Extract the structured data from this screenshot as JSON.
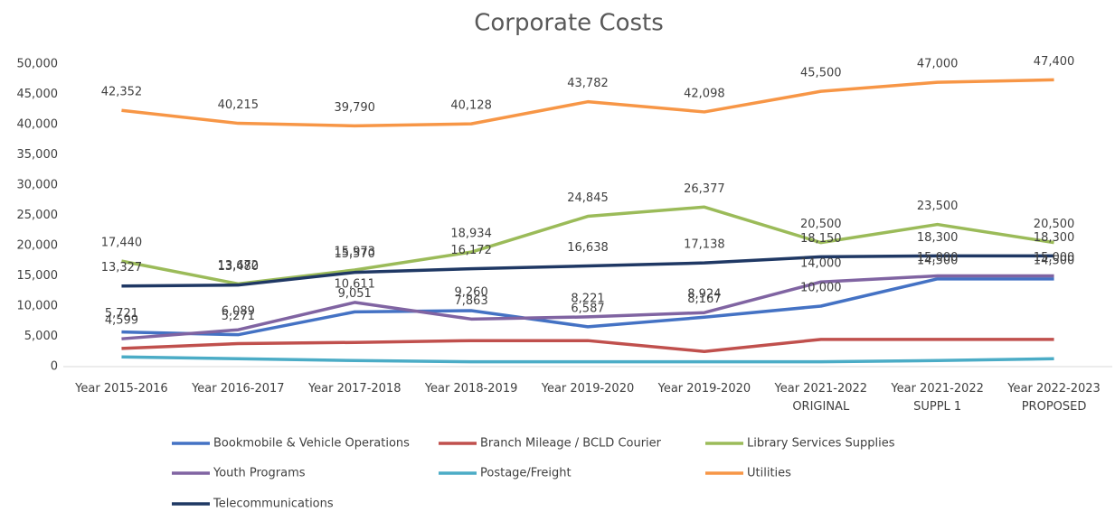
{
  "chart_data": {
    "type": "line",
    "title": "Corporate Costs",
    "categories": [
      "Year 2015-2016",
      "Year 2016-2017",
      "Year 2017-2018",
      "Year 2018-2019",
      "Year 2019-2020",
      "Year 2019-2020",
      "Year 2021-2022\nORIGINAL",
      "Year 2021-2022\nSUPPL 1",
      "Year 2022-2023\nPROPOSED"
    ],
    "series": [
      {
        "name": "Bookmobile & Vehicle Operations",
        "color": "#4472c4",
        "values": [
          5721,
          5271,
          9051,
          9260,
          6587,
          8167,
          10000,
          14500,
          14500
        ],
        "value_labels": [
          "5,721",
          "5,271",
          "9,051",
          "9,260",
          "6,587",
          "8,167",
          "10,000",
          "14,500",
          "14,500"
        ]
      },
      {
        "name": "Branch Mileage / BCLD Courier",
        "color": "#c0504d",
        "values": [
          3000,
          3800,
          4000,
          4300,
          4300,
          2500,
          4500,
          4500,
          4500
        ]
      },
      {
        "name": "Library Services Supplies",
        "color": "#9bbb59",
        "values": [
          17440,
          13672,
          15973,
          18934,
          24845,
          26377,
          20500,
          23500,
          20500
        ],
        "value_labels": [
          "17,440",
          "13,672",
          "15,973",
          "18,934",
          "24,845",
          "26,377",
          "20,500",
          "23,500",
          "20,500"
        ]
      },
      {
        "name": "Youth Programs",
        "color": "#8064a2",
        "values": [
          4599,
          6089,
          10611,
          7863,
          8221,
          8924,
          14000,
          15000,
          15000
        ],
        "value_labels": [
          "4,599",
          "6,089",
          "10,611",
          "7,863",
          "8,221",
          "8,924",
          "14,000",
          "15,000",
          "15,000"
        ]
      },
      {
        "name": "Postage/Freight",
        "color": "#4bacc6",
        "values": [
          1600,
          1300,
          1000,
          800,
          800,
          800,
          800,
          1000,
          1300
        ]
      },
      {
        "name": "Utilities",
        "color": "#f79646",
        "values": [
          42352,
          40215,
          39790,
          40128,
          43782,
          42098,
          45500,
          47000,
          47400
        ],
        "value_labels": [
          "42,352",
          "40,215",
          "39,790",
          "40,128",
          "43,782",
          "42,098",
          "45,500",
          "47,000",
          "47,400"
        ]
      },
      {
        "name": "Telecommunications",
        "color": "#1f3864",
        "values": [
          13327,
          13480,
          15570,
          16172,
          16638,
          17138,
          18150,
          18300,
          18300
        ],
        "value_labels": [
          "13,327",
          "13,480",
          "15,570",
          "16,172",
          "16,638",
          "17,138",
          "18,150",
          "18,300",
          "18,300"
        ]
      }
    ],
    "ylim": [
      0,
      50000
    ],
    "yticks": [
      0,
      {
        "value": 5000,
        "label": "5,000"
      },
      {
        "value": 10000,
        "label": "10,000"
      },
      {
        "value": 15000,
        "label": "15,000"
      },
      {
        "value": 20000,
        "label": "20,000"
      },
      {
        "value": 25000,
        "label": "25,000"
      },
      {
        "value": 30000,
        "label": "30,000"
      },
      {
        "value": 35000,
        "label": "35,000"
      },
      {
        "value": 40000,
        "label": "40,000"
      },
      {
        "value": 45000,
        "label": "45,000"
      },
      {
        "value": 50000,
        "label": "50,000"
      }
    ],
    "grid": false
  }
}
